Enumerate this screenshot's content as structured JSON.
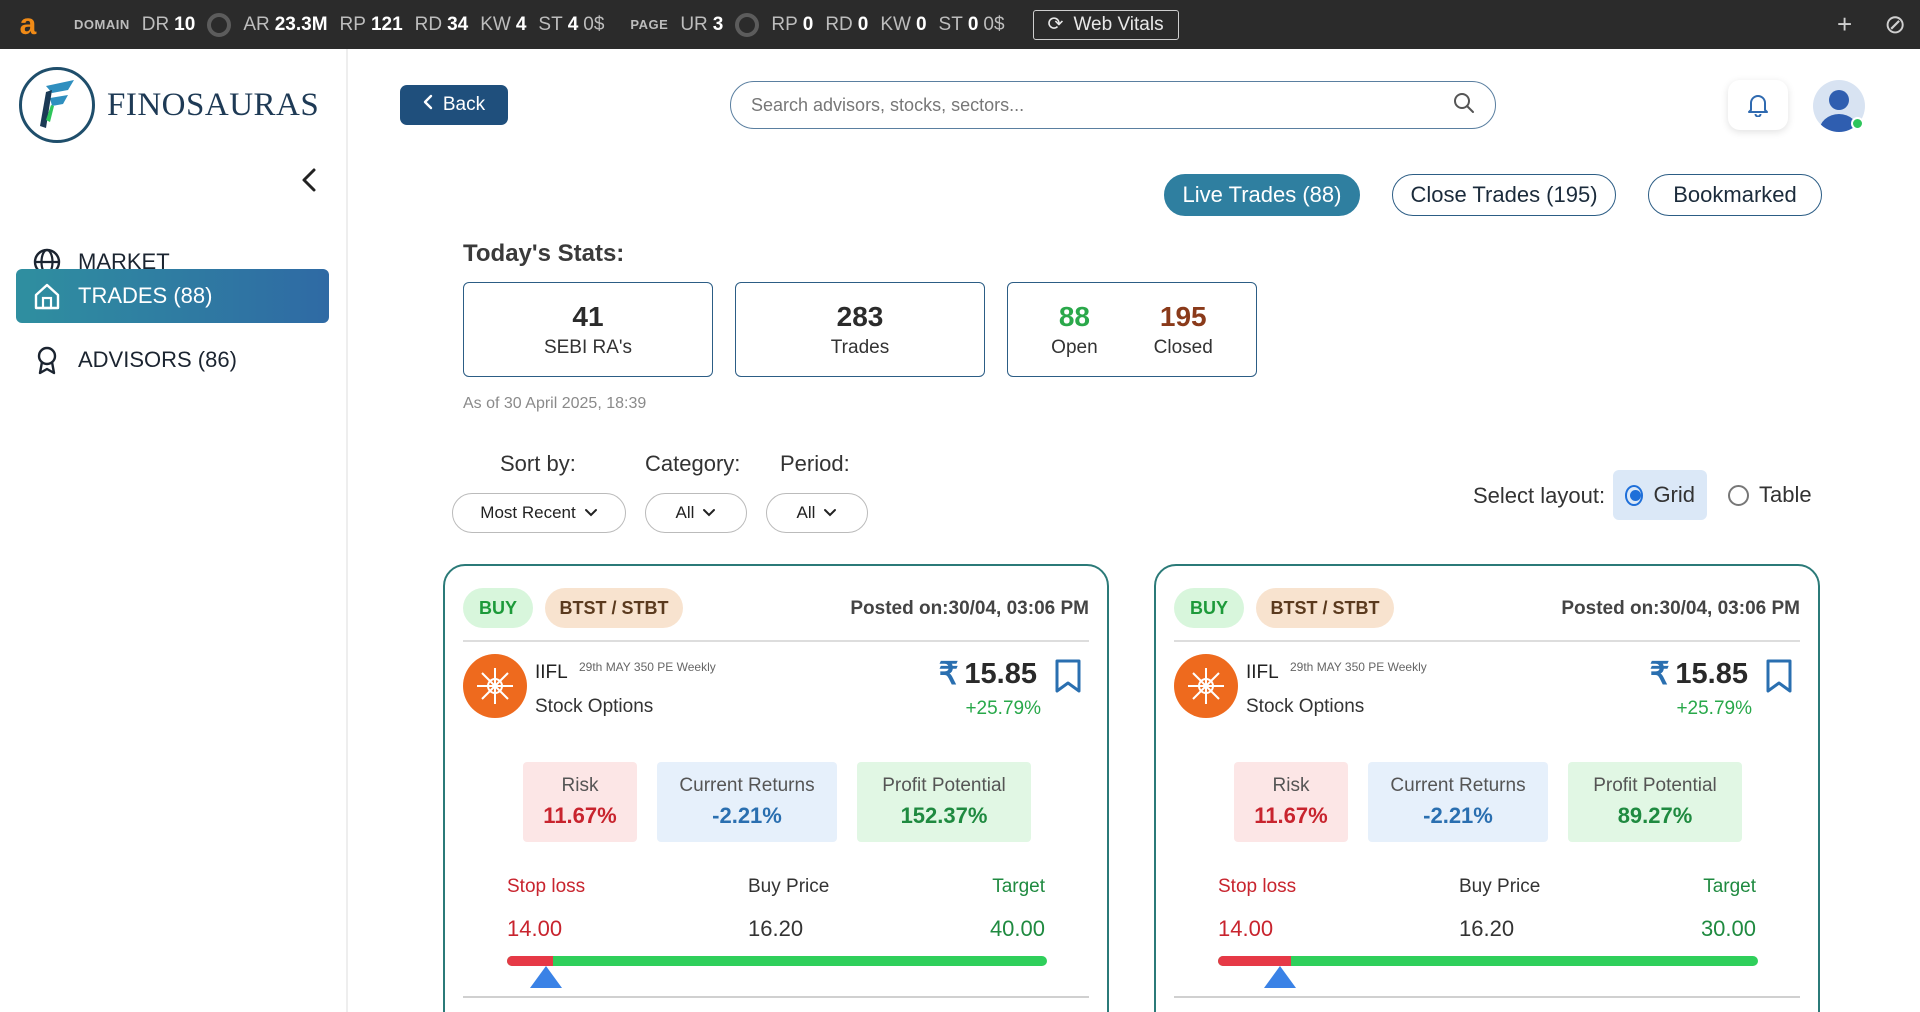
{
  "seo_bar": {
    "logo": "a",
    "domain_label": "DOMAIN",
    "domain": [
      {
        "k": "DR",
        "v": "10"
      },
      {
        "k": "AR",
        "v": "23.3M"
      },
      {
        "k": "RP",
        "v": "121"
      },
      {
        "k": "RD",
        "v": "34"
      },
      {
        "k": "KW",
        "v": "4"
      },
      {
        "k": "ST",
        "v": "4"
      }
    ],
    "domain_money": "0$",
    "page_label": "PAGE",
    "page": [
      {
        "k": "UR",
        "v": "3"
      },
      {
        "k": "RP",
        "v": "0"
      },
      {
        "k": "RD",
        "v": "0"
      },
      {
        "k": "KW",
        "v": "0"
      },
      {
        "k": "ST",
        "v": "0"
      }
    ],
    "page_money": "0$",
    "web_vitals": "Web Vitals"
  },
  "sidebar": {
    "brand": "FINOSAURAS",
    "items": [
      {
        "label": "MARKET",
        "icon": "globe-icon"
      },
      {
        "label": "TRADES (88)",
        "icon": "home-icon",
        "active": true
      },
      {
        "label": "ADVISORS (86)",
        "icon": "award-icon"
      }
    ]
  },
  "header": {
    "back": "Back",
    "search_placeholder": "Search advisors, stocks, sectors..."
  },
  "tabs": [
    {
      "label": "Live Trades (88)",
      "active": true
    },
    {
      "label": "Close Trades (195)"
    },
    {
      "label": "Bookmarked"
    }
  ],
  "stats": {
    "title": "Today's Stats:",
    "sebi": {
      "num": "41",
      "label": "SEBI RA's"
    },
    "trades": {
      "num": "283",
      "label": "Trades"
    },
    "open": {
      "num": "88",
      "label": "Open"
    },
    "closed": {
      "num": "195",
      "label": "Closed"
    },
    "as_of": "As of 30 April 2025, 18:39",
    "colors": {
      "open": "#2aa84a",
      "closed": "#8a3a1a"
    }
  },
  "filters": {
    "sort_label": "Sort by:",
    "sort_value": "Most Recent",
    "category_label": "Category:",
    "category_value": "All",
    "period_label": "Period:",
    "period_value": "All",
    "layout_label": "Select layout:",
    "layout_grid": "Grid",
    "layout_table": "Table",
    "layout_selected": "Grid"
  },
  "cards": [
    {
      "side": "BUY",
      "category": "BTST / STBT",
      "posted": "Posted on:30/04, 03:06 PM",
      "company": "IIFL",
      "contract": "29th MAY 350 PE Weekly",
      "type": "Stock Options",
      "currency": "₹",
      "price": "15.85",
      "change": "+25.79%",
      "risk_label": "Risk",
      "risk": "11.67%",
      "returns_label": "Current Returns",
      "returns": "-2.21%",
      "potential_label": "Profit Potential",
      "potential": "152.37%",
      "stop_label": "Stop loss",
      "stop": "14.00",
      "buy_label": "Buy Price",
      "buy": "16.20",
      "target_label": "Target",
      "target": "40.00",
      "stop_fraction": 0.085,
      "marker_fraction": 0.072
    },
    {
      "side": "BUY",
      "category": "BTST / STBT",
      "posted": "Posted on:30/04, 03:06 PM",
      "company": "IIFL",
      "contract": "29th MAY 350 PE Weekly",
      "type": "Stock Options",
      "currency": "₹",
      "price": "15.85",
      "change": "+25.79%",
      "risk_label": "Risk",
      "risk": "11.67%",
      "returns_label": "Current Returns",
      "returns": "-2.21%",
      "potential_label": "Profit Potential",
      "potential": "89.27%",
      "stop_label": "Stop loss",
      "stop": "14.00",
      "buy_label": "Buy Price",
      "buy": "16.20",
      "target_label": "Target",
      "target": "30.00",
      "stop_fraction": 0.136,
      "marker_fraction": 0.115
    }
  ]
}
